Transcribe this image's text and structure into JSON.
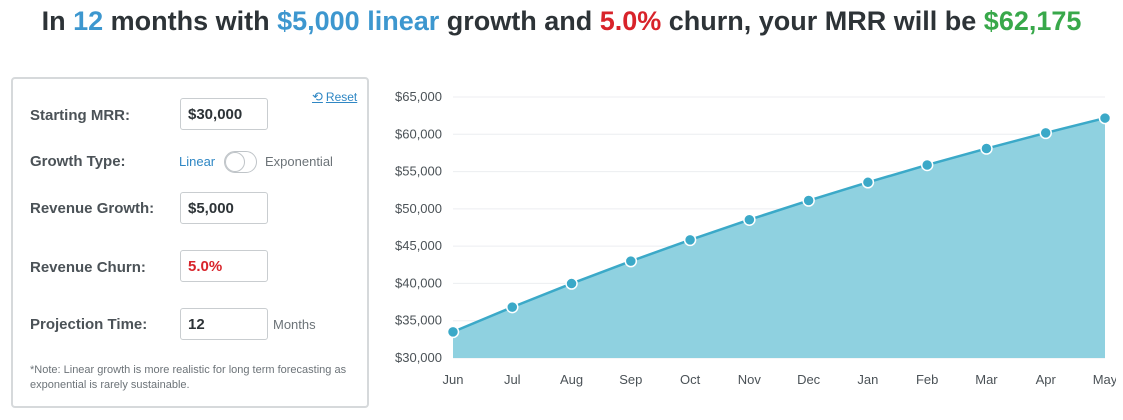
{
  "headline": {
    "p1": "In ",
    "months": "12",
    "p2": " months with ",
    "growth": "$5,000 linear",
    "p3": " growth and ",
    "churn": "5.0%",
    "p4": " churn, your MRR will be ",
    "mrr": "$62,175"
  },
  "panel": {
    "reset_label": "Reset",
    "reset_icon": "refresh-icon",
    "starting_mrr": {
      "label": "Starting MRR:",
      "value": "$30,000"
    },
    "growth_type": {
      "label": "Growth Type:",
      "option_linear": "Linear",
      "option_exponential": "Exponential",
      "selected": "Linear"
    },
    "revenue_growth": {
      "label": "Revenue Growth:",
      "value": "$5,000"
    },
    "revenue_churn": {
      "label": "Revenue Churn:",
      "value": "5.0%"
    },
    "projection_time": {
      "label": "Projection Time:",
      "value": "12",
      "unit": "Months"
    },
    "note": "*Note: Linear growth is more realistic for long term forecasting as exponential is rarely sustainable."
  },
  "colors": {
    "blue": "#3d97cf",
    "red": "#d8232a",
    "green": "#38a84a",
    "area_fill": "#8fd1e0",
    "line": "#3ba9c8"
  },
  "chart_data": {
    "type": "area",
    "categories": [
      "Jun",
      "Jul",
      "Aug",
      "Sep",
      "Oct",
      "Nov",
      "Dec",
      "Jan",
      "Feb",
      "Mar",
      "Apr",
      "May"
    ],
    "values": [
      33500,
      36825,
      39984,
      42985,
      45836,
      48544,
      51117,
      53561,
      55883,
      58089,
      60185,
      62175
    ],
    "ylim": [
      30000,
      65000
    ],
    "yticks": [
      "$30,000",
      "$35,000",
      "$40,000",
      "$45,000",
      "$50,000",
      "$55,000",
      "$60,000",
      "$65,000"
    ],
    "grid": true,
    "title": "",
    "xlabel": "",
    "ylabel": ""
  }
}
